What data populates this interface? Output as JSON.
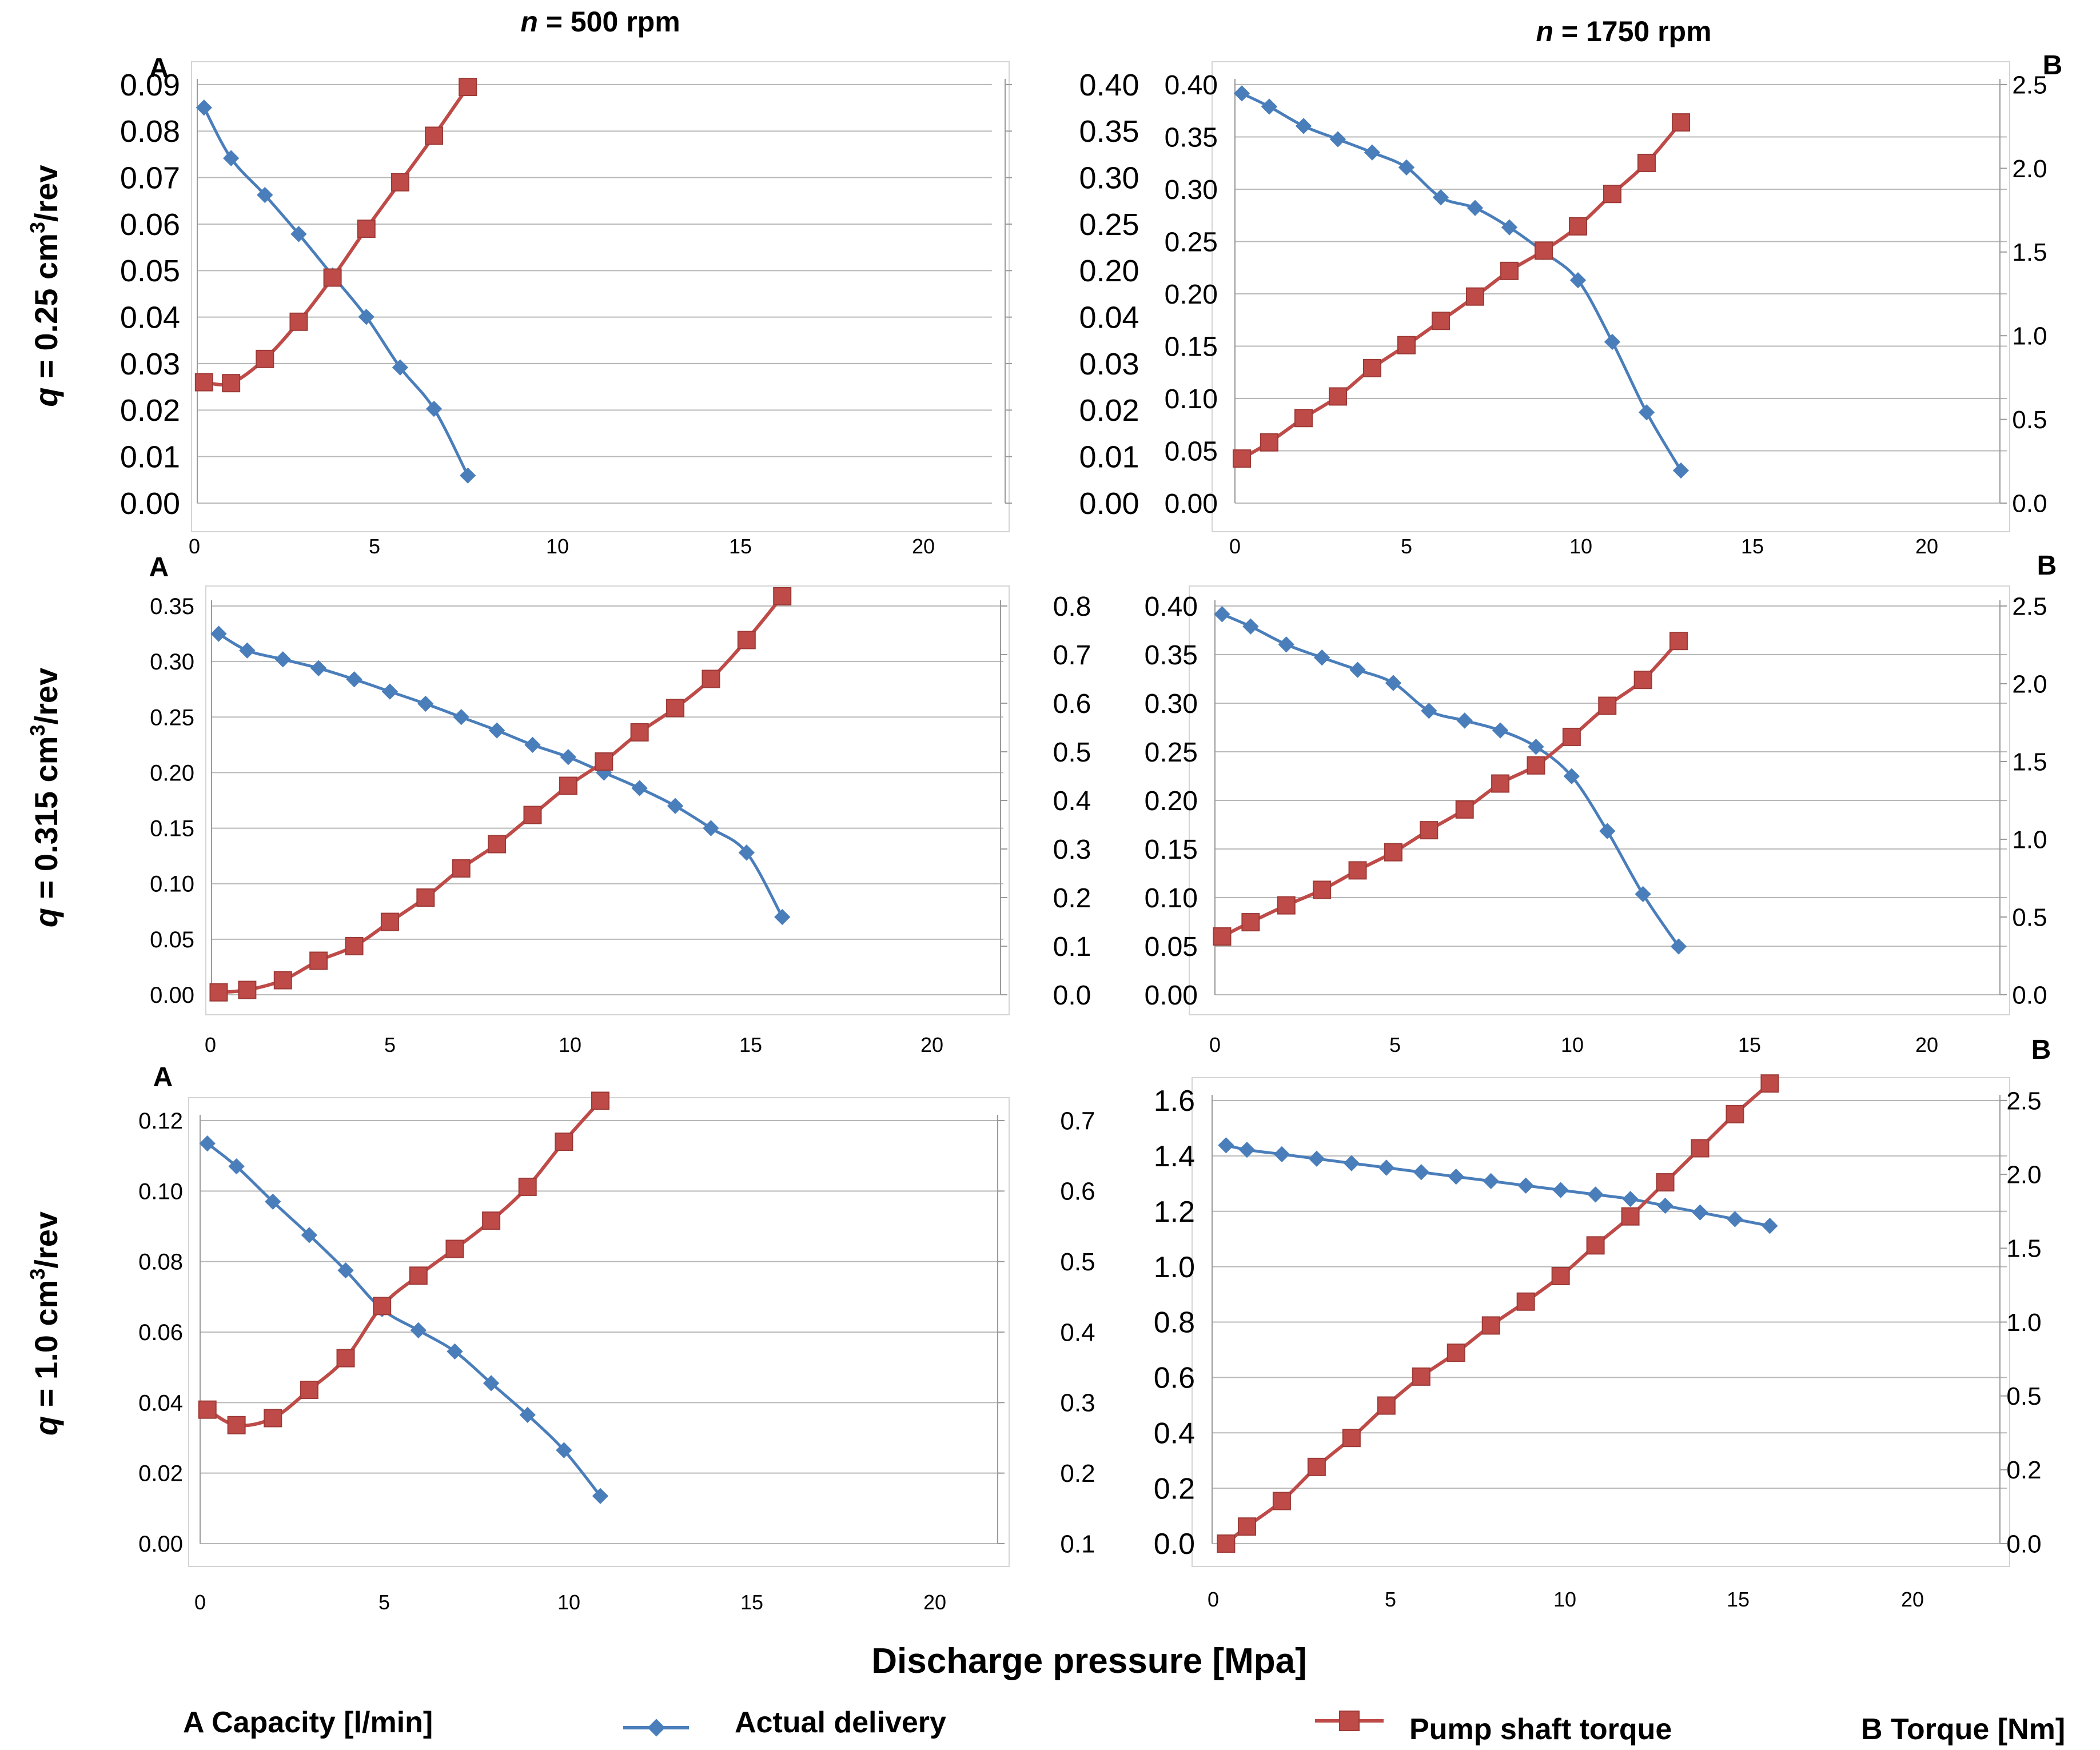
{
  "figure": {
    "col_titles": [
      {
        "prefix": "n",
        "text": " = 500 rpm"
      },
      {
        "prefix": "n",
        "text": " = 1750 rpm"
      }
    ],
    "row_titles": [
      {
        "prefix": "q",
        "text": " = 0.25 cm",
        "sup": "3",
        "suffix": "/rev"
      },
      {
        "prefix": "q",
        "text": " = 0.315 cm",
        "sup": "3",
        "suffix": "/rev"
      },
      {
        "prefix": "q",
        "text": " = 1.0 cm",
        "sup": "3",
        "suffix": "/rev"
      }
    ],
    "x_axis_title": "Discharge pressure [Mpa]",
    "legend": {
      "left_axis_label": "A  Capacity [l/min]",
      "series1": "Actual delivery",
      "series2": "Pump shaft torque",
      "right_axis_label": "B Torque [Nm]"
    },
    "colors": {
      "delivery": "#4a7ebb",
      "torque": "#be4b48",
      "grid": "#b8b8b8",
      "axis": "#9a9a9a"
    }
  },
  "chart_data": [
    {
      "id": "p1",
      "type": "line",
      "panel_label": "A",
      "x_ticks": [
        "0",
        "5",
        "10",
        "15",
        "20"
      ],
      "left_ticks": [
        "0.09",
        "0.08",
        "0.07",
        "0.06",
        "0.05",
        "0.04",
        "0.03",
        "0.02",
        "0.01",
        "0.00"
      ],
      "right_ticks": [
        "0.40",
        "0.35",
        "0.30",
        "0.25",
        "0.20",
        "0.04",
        "0.03",
        "0.02",
        "0.01",
        "0.00"
      ],
      "xlim": [
        0,
        23.5
      ],
      "ylim_left": [
        -0.0005,
        0.0905
      ],
      "ylim_right": [
        0,
        9
      ],
      "series": [
        {
          "name": "Actual delivery",
          "axis": "left",
          "marker": "diamond",
          "x": [
            0.2,
            1,
            2,
            3,
            4,
            5,
            6,
            7,
            8
          ],
          "y": [
            0.0855,
            0.0745,
            0.0665,
            0.058,
            0.049,
            0.04,
            0.029,
            0.02,
            0.0055
          ]
        },
        {
          "name": "Pump shaft torque",
          "axis": "right",
          "marker": "square",
          "x": [
            0.2,
            1,
            2,
            3,
            4,
            5,
            6,
            7,
            8
          ],
          "y": [
            2.6,
            2.58,
            3.1,
            3.9,
            4.85,
            5.9,
            6.9,
            7.9,
            8.95
          ]
        }
      ]
    },
    {
      "id": "p2",
      "type": "line",
      "panel_label": "B",
      "x_ticks": [
        "0",
        "5",
        "10",
        "15",
        "20"
      ],
      "left_ticks": [
        "0.40",
        "0.35",
        "0.30",
        "0.25",
        "0.20",
        "0.15",
        "0.10",
        "0.05",
        "0.00"
      ],
      "right_ticks": [
        "2.5",
        "2.0",
        "1.5",
        "1.0",
        "0.5",
        "0.0"
      ],
      "xlim": [
        0,
        22.5
      ],
      "ylim_left": [
        -0.045,
        0.43
      ],
      "ylim_right": [
        -0.45,
        2.65
      ],
      "series": [
        {
          "name": "Actual delivery",
          "axis": "left",
          "marker": "diamond",
          "x": [
            0.2,
            1,
            2,
            3,
            4,
            5,
            6,
            7,
            8,
            9,
            10,
            11,
            12,
            13
          ],
          "y": [
            0.42,
            0.405,
            0.383,
            0.368,
            0.353,
            0.336,
            0.302,
            0.29,
            0.268,
            0.24,
            0.208,
            0.138,
            0.058,
            -0.008
          ]
        },
        {
          "name": "Pump shaft torque",
          "axis": "right",
          "marker": "square",
          "x": [
            0.2,
            1,
            2,
            3,
            4,
            5,
            6,
            7,
            8,
            9,
            10,
            11,
            12,
            13
          ],
          "y": [
            -0.12,
            0,
            0.18,
            0.34,
            0.55,
            0.72,
            0.9,
            1.08,
            1.27,
            1.42,
            1.6,
            1.84,
            2.07,
            2.37
          ]
        }
      ]
    },
    {
      "id": "p3",
      "type": "line",
      "panel_label": "A",
      "x_ticks": [
        "0",
        "5",
        "10",
        "15",
        "20"
      ],
      "left_ticks": [
        "0.35",
        "0.30",
        "0.25",
        "0.20",
        "0.15",
        "0.10",
        "0.05",
        "0.00"
      ],
      "right_ticks": [
        "0.8",
        "0.7",
        "0.6",
        "0.5",
        "0.4",
        "0.3",
        "0.2",
        "0.1",
        "0.0"
      ],
      "xlim": [
        0,
        22.2
      ],
      "ylim_left": [
        0,
        0.35
      ],
      "ylim_right": [
        0,
        0.8
      ],
      "series": [
        {
          "name": "Actual delivery",
          "axis": "left",
          "marker": "diamond",
          "x": [
            0.2,
            1,
            2,
            3,
            4,
            5,
            6,
            7,
            8,
            9,
            10,
            11,
            12,
            13,
            14,
            15,
            16
          ],
          "y": [
            0.325,
            0.31,
            0.302,
            0.294,
            0.284,
            0.273,
            0.262,
            0.25,
            0.238,
            0.225,
            0.214,
            0.2,
            0.186,
            0.17,
            0.15,
            0.128,
            0.07
          ]
        },
        {
          "name": "Pump shaft torque",
          "axis": "right",
          "marker": "square",
          "x": [
            0.2,
            1,
            2,
            3,
            4,
            5,
            6,
            7,
            8,
            9,
            10,
            11,
            12,
            13,
            14,
            15,
            16
          ],
          "y": [
            0.005,
            0.01,
            0.03,
            0.07,
            0.1,
            0.15,
            0.2,
            0.26,
            0.31,
            0.37,
            0.43,
            0.48,
            0.54,
            0.59,
            0.65,
            0.73,
            0.82
          ]
        }
      ]
    },
    {
      "id": "p4",
      "type": "line",
      "panel_label": "B",
      "x_ticks": [
        "0",
        "5",
        "10",
        "15",
        "20"
      ],
      "left_ticks": [
        "0.40",
        "0.35",
        "0.30",
        "0.25",
        "0.20",
        "0.15",
        "0.10",
        "0.05",
        "0.00"
      ],
      "right_ticks": [
        "2.5",
        "2.0",
        "1.5",
        "1.0",
        "0.5",
        "0.0"
      ],
      "xlim": [
        0,
        22.2
      ],
      "ylim_left": [
        -0.045,
        0.43
      ],
      "ylim_right": [
        -0.4,
        2.6
      ],
      "series": [
        {
          "name": "Actual delivery",
          "axis": "left",
          "marker": "diamond",
          "x": [
            0.2,
            1,
            2,
            3,
            4,
            5,
            6,
            7,
            8,
            9,
            10,
            11,
            12,
            13
          ],
          "y": [
            0.42,
            0.405,
            0.383,
            0.367,
            0.352,
            0.336,
            0.302,
            0.29,
            0.278,
            0.258,
            0.222,
            0.155,
            0.078,
            0.014
          ]
        },
        {
          "name": "Pump shaft torque",
          "axis": "right",
          "marker": "square",
          "x": [
            0.2,
            1,
            2,
            3,
            4,
            5,
            6,
            7,
            8,
            9,
            10,
            11,
            12,
            13
          ],
          "y": [
            0.05,
            0.16,
            0.29,
            0.41,
            0.56,
            0.7,
            0.87,
            1.03,
            1.23,
            1.37,
            1.59,
            1.83,
            2.03,
            2.33
          ]
        }
      ]
    },
    {
      "id": "p5",
      "type": "line",
      "panel_label": "A",
      "x_ticks": [
        "0",
        "5",
        "10",
        "15",
        "20"
      ],
      "left_ticks": [
        "0.12",
        "0.10",
        "0.08",
        "0.06",
        "0.04",
        "0.02",
        "0.00"
      ],
      "right_ticks": [
        "0.7",
        "0.6",
        "0.5",
        "0.4",
        "0.3",
        "0.2",
        "0.1"
      ],
      "xlim": [
        0,
        22
      ],
      "ylim_left": [
        0,
        0.12
      ],
      "ylim_right": [
        0.1,
        0.7
      ],
      "series": [
        {
          "name": "Actual delivery",
          "axis": "left",
          "marker": "diamond",
          "x": [
            0.2,
            1,
            2,
            3,
            4,
            5,
            6,
            7,
            8,
            9,
            10,
            11
          ],
          "y": [
            0.1135,
            0.107,
            0.097,
            0.0875,
            0.0775,
            0.0665,
            0.0605,
            0.0545,
            0.0455,
            0.0365,
            0.0265,
            0.0135
          ]
        },
        {
          "name": "Pump shaft torque",
          "axis": "right",
          "marker": "square",
          "x": [
            0.2,
            1,
            2,
            3,
            4,
            5,
            6,
            7,
            8,
            9,
            10,
            11
          ],
          "y": [
            0.29,
            0.268,
            0.278,
            0.318,
            0.363,
            0.437,
            0.48,
            0.518,
            0.558,
            0.606,
            0.67,
            0.728
          ]
        }
      ]
    },
    {
      "id": "p6",
      "type": "line",
      "panel_label": "B",
      "x_ticks": [
        "0",
        "5",
        "10",
        "15",
        "20"
      ],
      "left_ticks": [
        "1.6",
        "1.4",
        "1.2",
        "1.0",
        "0.8",
        "0.6",
        "0.4",
        "0.2",
        "0.0"
      ],
      "right_ticks": [
        "2.5",
        "2.0",
        "1.5",
        "1.0",
        "0.5",
        "0.2",
        "0.0"
      ],
      "xlim": [
        0,
        22.8
      ],
      "ylim_left": [
        -0.2,
        1.78
      ],
      "ylim_right": [
        0,
        2.6
      ],
      "series": [
        {
          "name": "Actual delivery",
          "axis": "left",
          "marker": "diamond",
          "x": [
            0.4,
            1,
            2,
            3,
            4,
            5,
            6,
            7,
            8,
            9,
            10,
            11,
            12,
            13,
            14,
            15,
            16
          ],
          "y": [
            1.58,
            1.56,
            1.54,
            1.52,
            1.5,
            1.48,
            1.46,
            1.44,
            1.42,
            1.4,
            1.38,
            1.36,
            1.34,
            1.31,
            1.28,
            1.25,
            1.22
          ]
        },
        {
          "name": "Pump shaft torque",
          "axis": "right",
          "marker": "square",
          "x": [
            0.4,
            1,
            2,
            3,
            4,
            5,
            6,
            7,
            8,
            9,
            10,
            11,
            12,
            13,
            14,
            15,
            16
          ],
          "y": [
            0.0,
            0.1,
            0.25,
            0.45,
            0.62,
            0.81,
            0.98,
            1.12,
            1.28,
            1.42,
            1.57,
            1.75,
            1.92,
            2.12,
            2.32,
            2.52,
            2.7
          ]
        }
      ]
    }
  ]
}
